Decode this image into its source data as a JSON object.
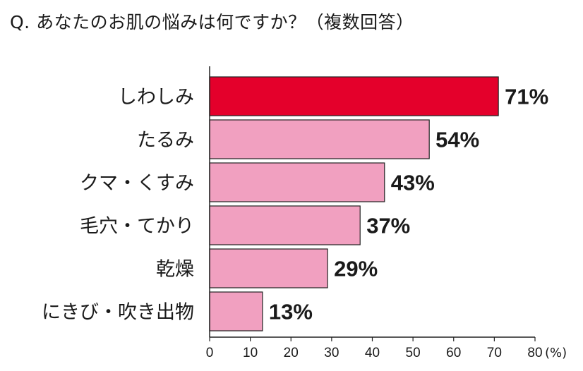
{
  "title": "Q. あなたのお肌の悩みは何ですか？（複数回答）",
  "chart_data": {
    "type": "bar",
    "orientation": "horizontal",
    "title": "Q. あなたのお肌の悩みは何ですか？（複数回答）",
    "categories": [
      "しわしみ",
      "たるみ",
      "クマ・くすみ",
      "毛穴・てかり",
      "乾燥",
      "にきび・吹き出物"
    ],
    "values": [
      71,
      54,
      43,
      37,
      29,
      13
    ],
    "value_labels": [
      "71%",
      "54%",
      "43%",
      "37%",
      "29%",
      "13%"
    ],
    "xlim": [
      0,
      80
    ],
    "x_ticks": [
      0,
      10,
      20,
      30,
      40,
      50,
      60,
      70,
      80
    ],
    "x_unit": "(%)",
    "highlight_index": 0,
    "colors": {
      "highlight": "#e4002b",
      "bar": "#f1a0c0",
      "border": "#222222"
    },
    "grid": false
  }
}
